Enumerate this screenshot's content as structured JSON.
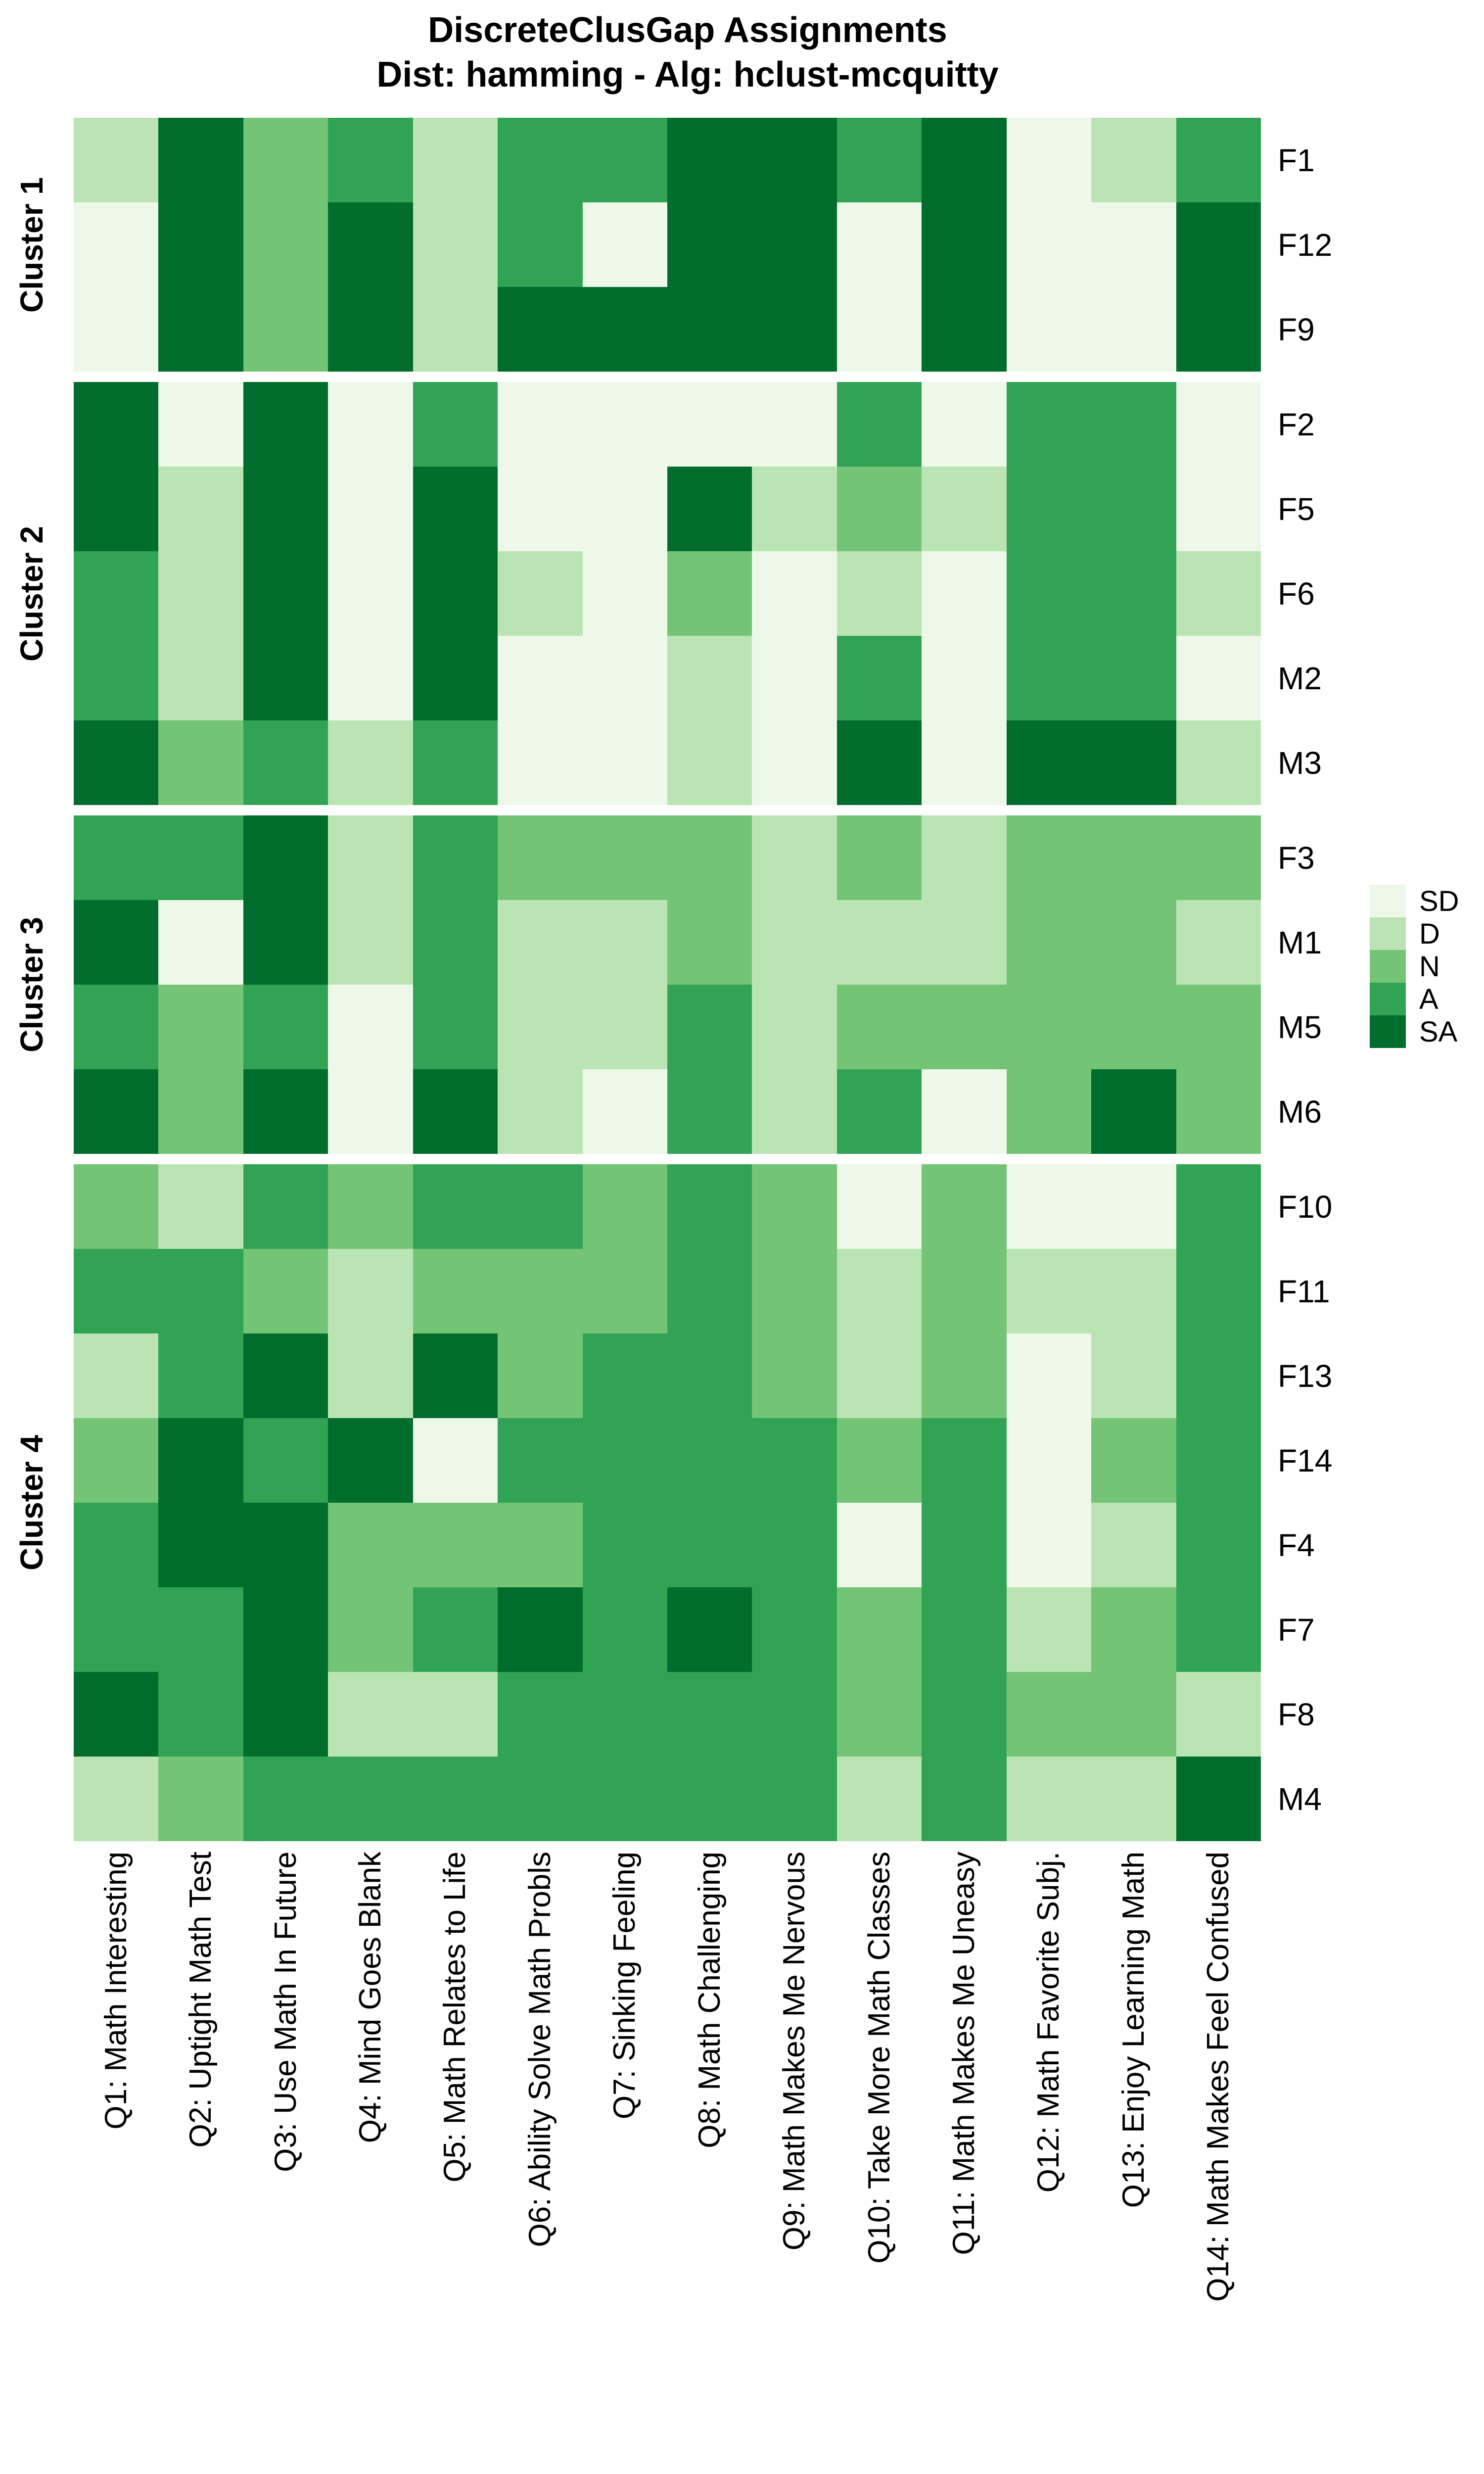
{
  "chart_data": {
    "type": "heatmap",
    "title": "DiscreteClusGap Assignments",
    "subtitle": "Dist: hamming - Alg: hclust-mcquitty",
    "legend": {
      "position": "right",
      "levels": [
        "SD",
        "D",
        "N",
        "A",
        "SA"
      ],
      "colors": [
        "#edf8e9",
        "#bae4b3",
        "#74c476",
        "#31a354",
        "#006d2c"
      ]
    },
    "columns": [
      "Q1: Math Interesting",
      "Q2: Uptight Math Test",
      "Q3: Use Math In Future",
      "Q4: Mind Goes Blank",
      "Q5: Math Relates to Life",
      "Q6: Ability Solve Math Probls",
      "Q7: Sinking Feeling",
      "Q8: Math Challenging",
      "Q9: Math Makes Me Nervous",
      "Q10: Take More Math Classes",
      "Q11: Math Makes Me Uneasy",
      "Q12: Math Favorite Subj.",
      "Q13: Enjoy Learning Math",
      "Q14: Math Makes Feel Confused"
    ],
    "clusters": [
      {
        "name": "Cluster 1",
        "rows": [
          {
            "label": "F1",
            "values": [
              "D",
              "SA",
              "N",
              "A",
              "D",
              "A",
              "A",
              "SA",
              "SA",
              "A",
              "SA",
              "SD",
              "D",
              "A"
            ]
          },
          {
            "label": "F12",
            "values": [
              "SD",
              "SA",
              "N",
              "SA",
              "D",
              "A",
              "SD",
              "SA",
              "SA",
              "SD",
              "SA",
              "SD",
              "SD",
              "SA"
            ]
          },
          {
            "label": "F9",
            "values": [
              "SD",
              "SA",
              "N",
              "SA",
              "D",
              "SA",
              "SA",
              "SA",
              "SA",
              "SD",
              "SA",
              "SD",
              "SD",
              "SA"
            ]
          }
        ]
      },
      {
        "name": "Cluster 2",
        "rows": [
          {
            "label": "F2",
            "values": [
              "SA",
              "SD",
              "SA",
              "SD",
              "A",
              "SD",
              "SD",
              "SD",
              "SD",
              "A",
              "SD",
              "A",
              "A",
              "SD"
            ]
          },
          {
            "label": "F5",
            "values": [
              "SA",
              "D",
              "SA",
              "SD",
              "SA",
              "SD",
              "SD",
              "SA",
              "D",
              "N",
              "D",
              "A",
              "A",
              "SD"
            ]
          },
          {
            "label": "F6",
            "values": [
              "A",
              "D",
              "SA",
              "SD",
              "SA",
              "D",
              "SD",
              "N",
              "SD",
              "D",
              "SD",
              "A",
              "A",
              "D"
            ]
          },
          {
            "label": "M2",
            "values": [
              "A",
              "D",
              "SA",
              "SD",
              "SA",
              "SD",
              "SD",
              "D",
              "SD",
              "A",
              "SD",
              "A",
              "A",
              "SD"
            ]
          },
          {
            "label": "M3",
            "values": [
              "SA",
              "N",
              "A",
              "D",
              "A",
              "SD",
              "SD",
              "D",
              "SD",
              "SA",
              "SD",
              "SA",
              "SA",
              "D"
            ]
          }
        ]
      },
      {
        "name": "Cluster 3",
        "rows": [
          {
            "label": "F3",
            "values": [
              "A",
              "A",
              "SA",
              "D",
              "A",
              "N",
              "N",
              "N",
              "D",
              "N",
              "D",
              "N",
              "N",
              "N"
            ]
          },
          {
            "label": "M1",
            "values": [
              "SA",
              "SD",
              "SA",
              "D",
              "A",
              "D",
              "D",
              "N",
              "D",
              "D",
              "D",
              "N",
              "N",
              "D"
            ]
          },
          {
            "label": "M5",
            "values": [
              "A",
              "N",
              "A",
              "SD",
              "A",
              "D",
              "D",
              "A",
              "D",
              "N",
              "N",
              "N",
              "N",
              "N"
            ]
          },
          {
            "label": "M6",
            "values": [
              "SA",
              "N",
              "SA",
              "SD",
              "SA",
              "D",
              "SD",
              "A",
              "D",
              "A",
              "SD",
              "N",
              "SA",
              "N"
            ]
          }
        ]
      },
      {
        "name": "Cluster 4",
        "rows": [
          {
            "label": "F10",
            "values": [
              "N",
              "D",
              "A",
              "N",
              "A",
              "A",
              "N",
              "A",
              "N",
              "SD",
              "N",
              "SD",
              "SD",
              "A"
            ]
          },
          {
            "label": "F11",
            "values": [
              "A",
              "A",
              "N",
              "D",
              "N",
              "N",
              "N",
              "A",
              "N",
              "D",
              "N",
              "D",
              "D",
              "A"
            ]
          },
          {
            "label": "F13",
            "values": [
              "D",
              "A",
              "SA",
              "D",
              "SA",
              "N",
              "A",
              "A",
              "N",
              "D",
              "N",
              "SD",
              "D",
              "A"
            ]
          },
          {
            "label": "F14",
            "values": [
              "N",
              "SA",
              "A",
              "SA",
              "SD",
              "A",
              "A",
              "A",
              "A",
              "N",
              "A",
              "SD",
              "N",
              "A"
            ]
          },
          {
            "label": "F4",
            "values": [
              "A",
              "SA",
              "SA",
              "N",
              "N",
              "N",
              "A",
              "A",
              "A",
              "SD",
              "A",
              "SD",
              "D",
              "A"
            ]
          },
          {
            "label": "F7",
            "values": [
              "A",
              "A",
              "SA",
              "N",
              "A",
              "SA",
              "A",
              "SA",
              "A",
              "N",
              "A",
              "D",
              "N",
              "A"
            ]
          },
          {
            "label": "F8",
            "values": [
              "SA",
              "A",
              "SA",
              "D",
              "D",
              "A",
              "A",
              "A",
              "A",
              "N",
              "A",
              "N",
              "N",
              "D"
            ]
          },
          {
            "label": "M4",
            "values": [
              "D",
              "N",
              "A",
              "A",
              "A",
              "A",
              "A",
              "A",
              "A",
              "D",
              "A",
              "D",
              "D",
              "SA"
            ]
          }
        ]
      }
    ],
    "layout": {
      "grid": false,
      "cell_border": "none",
      "legend_position": "right",
      "x_labels_rotated": true,
      "y_cluster_labels_rotated": true
    }
  }
}
